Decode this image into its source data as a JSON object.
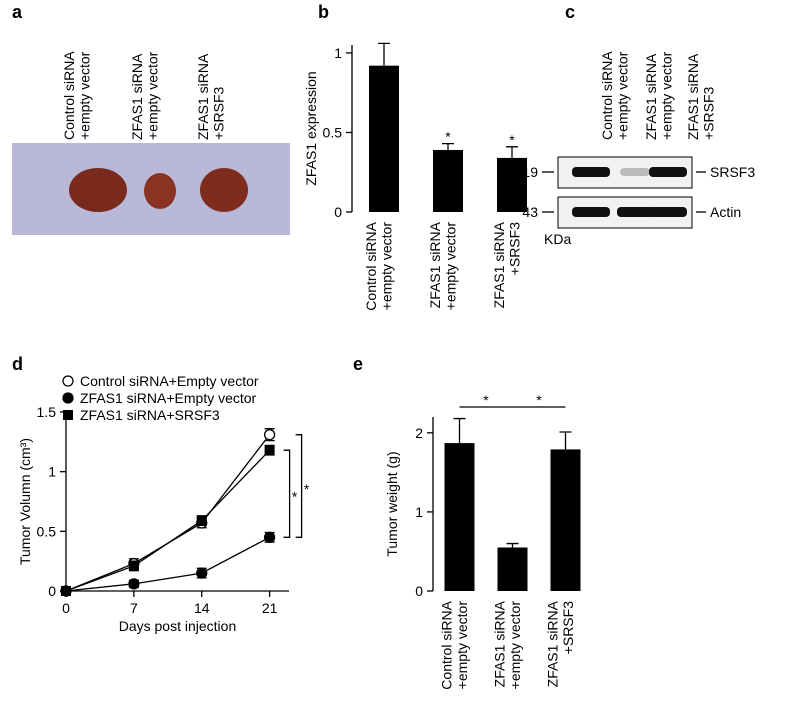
{
  "photo": {
    "panel": "a",
    "lanes": [
      "Control siRNA\n+empty vector",
      "ZFAS1 siRNA\n+empty vector",
      "ZFAS1 siRNA\n+SRSF3"
    ]
  },
  "blot": {
    "panel": "c",
    "lanes": [
      "Control siRNA\n+empty vector",
      "ZFAS1 siRNA\n+empty vector",
      "ZFAS1 siRNA\n+SRSF3"
    ],
    "rows": [
      {
        "size": "19",
        "protein": "SRSF3"
      },
      {
        "size": "43",
        "protein": "Actin"
      }
    ],
    "unit": "KDa"
  },
  "chart_data": [
    {
      "type": "bar",
      "panel": "b",
      "ylabel": "ZFAS1 expression",
      "categories": [
        "Control siRNA\n+empty vector",
        "ZFAS1 siRNA\n+empty vector",
        "ZFAS1 siRNA\n+SRSF3"
      ],
      "values": [
        0.92,
        0.39,
        0.34
      ],
      "errors": [
        0.14,
        0.04,
        0.07
      ],
      "color": "#000000",
      "ylim": [
        0,
        1.05
      ],
      "yticks": [
        0,
        0.5,
        1
      ],
      "annotations": [
        "*",
        "*"
      ]
    },
    {
      "type": "line",
      "panel": "d",
      "ylabel": "Tumor Volumn (cm³)",
      "xlabel": "Days post injection",
      "x": [
        0,
        7,
        14,
        21
      ],
      "xlim": [
        0,
        23
      ],
      "xticks": [
        0,
        7,
        14,
        21
      ],
      "ylim": [
        0,
        1.5
      ],
      "yticks": [
        0,
        0.5,
        1,
        1.5
      ],
      "legend": "upper left",
      "series": [
        {
          "name": "Control siRNA+Empty vector",
          "color": "#000000",
          "marker": "open-circle",
          "values": [
            0,
            0.23,
            0.57,
            1.31
          ],
          "errors": [
            0,
            0.04,
            0.04,
            0.05
          ]
        },
        {
          "name": "ZFAS1 siRNA+Empty vector",
          "color": "#000000",
          "marker": "circle",
          "values": [
            0,
            0.06,
            0.15,
            0.45
          ],
          "errors": [
            0,
            0.03,
            0.04,
            0.04
          ]
        },
        {
          "name": "ZFAS1 siRNA+SRSF3",
          "color": "#000000",
          "marker": "square",
          "values": [
            0,
            0.21,
            0.59,
            1.18
          ],
          "errors": [
            0,
            0.04,
            0.04,
            0.04
          ]
        }
      ],
      "annotations": [
        "*",
        "*"
      ]
    },
    {
      "type": "bar",
      "panel": "e",
      "ylabel": "Tumor weight (g)",
      "categories": [
        "Control siRNA\n+empty vector",
        "ZFAS1 siRNA\n+empty vector",
        "ZFAS1 siRNA\n+SRSF3"
      ],
      "values": [
        1.87,
        0.55,
        1.79
      ],
      "errors": [
        0.31,
        0.05,
        0.22
      ],
      "color": "#000000",
      "ylim": [
        0,
        2.2
      ],
      "yticks": [
        0,
        1,
        2
      ],
      "annotations": [
        "*",
        "*"
      ]
    }
  ]
}
